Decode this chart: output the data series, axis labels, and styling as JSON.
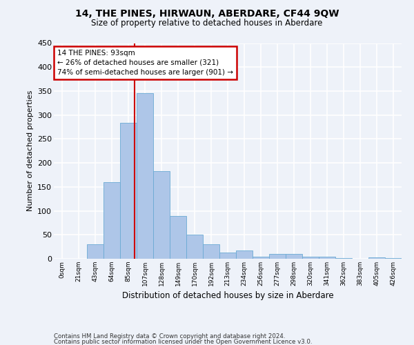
{
  "title": "14, THE PINES, HIRWAUN, ABERDARE, CF44 9QW",
  "subtitle": "Size of property relative to detached houses in Aberdare",
  "xlabel": "Distribution of detached houses by size in Aberdare",
  "ylabel": "Number of detached properties",
  "bar_color": "#aec6e8",
  "bar_edge_color": "#6aaad4",
  "bins": [
    "0sqm",
    "21sqm",
    "43sqm",
    "64sqm",
    "85sqm",
    "107sqm",
    "128sqm",
    "149sqm",
    "170sqm",
    "192sqm",
    "213sqm",
    "234sqm",
    "256sqm",
    "277sqm",
    "298sqm",
    "320sqm",
    "341sqm",
    "362sqm",
    "383sqm",
    "405sqm",
    "426sqm"
  ],
  "values": [
    0,
    0,
    30,
    160,
    283,
    345,
    183,
    90,
    50,
    30,
    13,
    18,
    5,
    10,
    10,
    4,
    5,
    2,
    0,
    3,
    2
  ],
  "annotation_line1": "14 THE PINES: 93sqm",
  "annotation_line2": "← 26% of detached houses are smaller (321)",
  "annotation_line3": "74% of semi-detached houses are larger (901) →",
  "annotation_box_color": "#ffffff",
  "annotation_box_edge": "#cc0000",
  "line_color": "#cc0000",
  "ylim": [
    0,
    450
  ],
  "yticks": [
    0,
    50,
    100,
    150,
    200,
    250,
    300,
    350,
    400,
    450
  ],
  "footer_line1": "Contains HM Land Registry data © Crown copyright and database right 2024.",
  "footer_line2": "Contains public sector information licensed under the Open Government Licence v3.0.",
  "bg_color": "#eef2f9",
  "grid_color": "#ffffff",
  "line_bin_index": 4.36
}
